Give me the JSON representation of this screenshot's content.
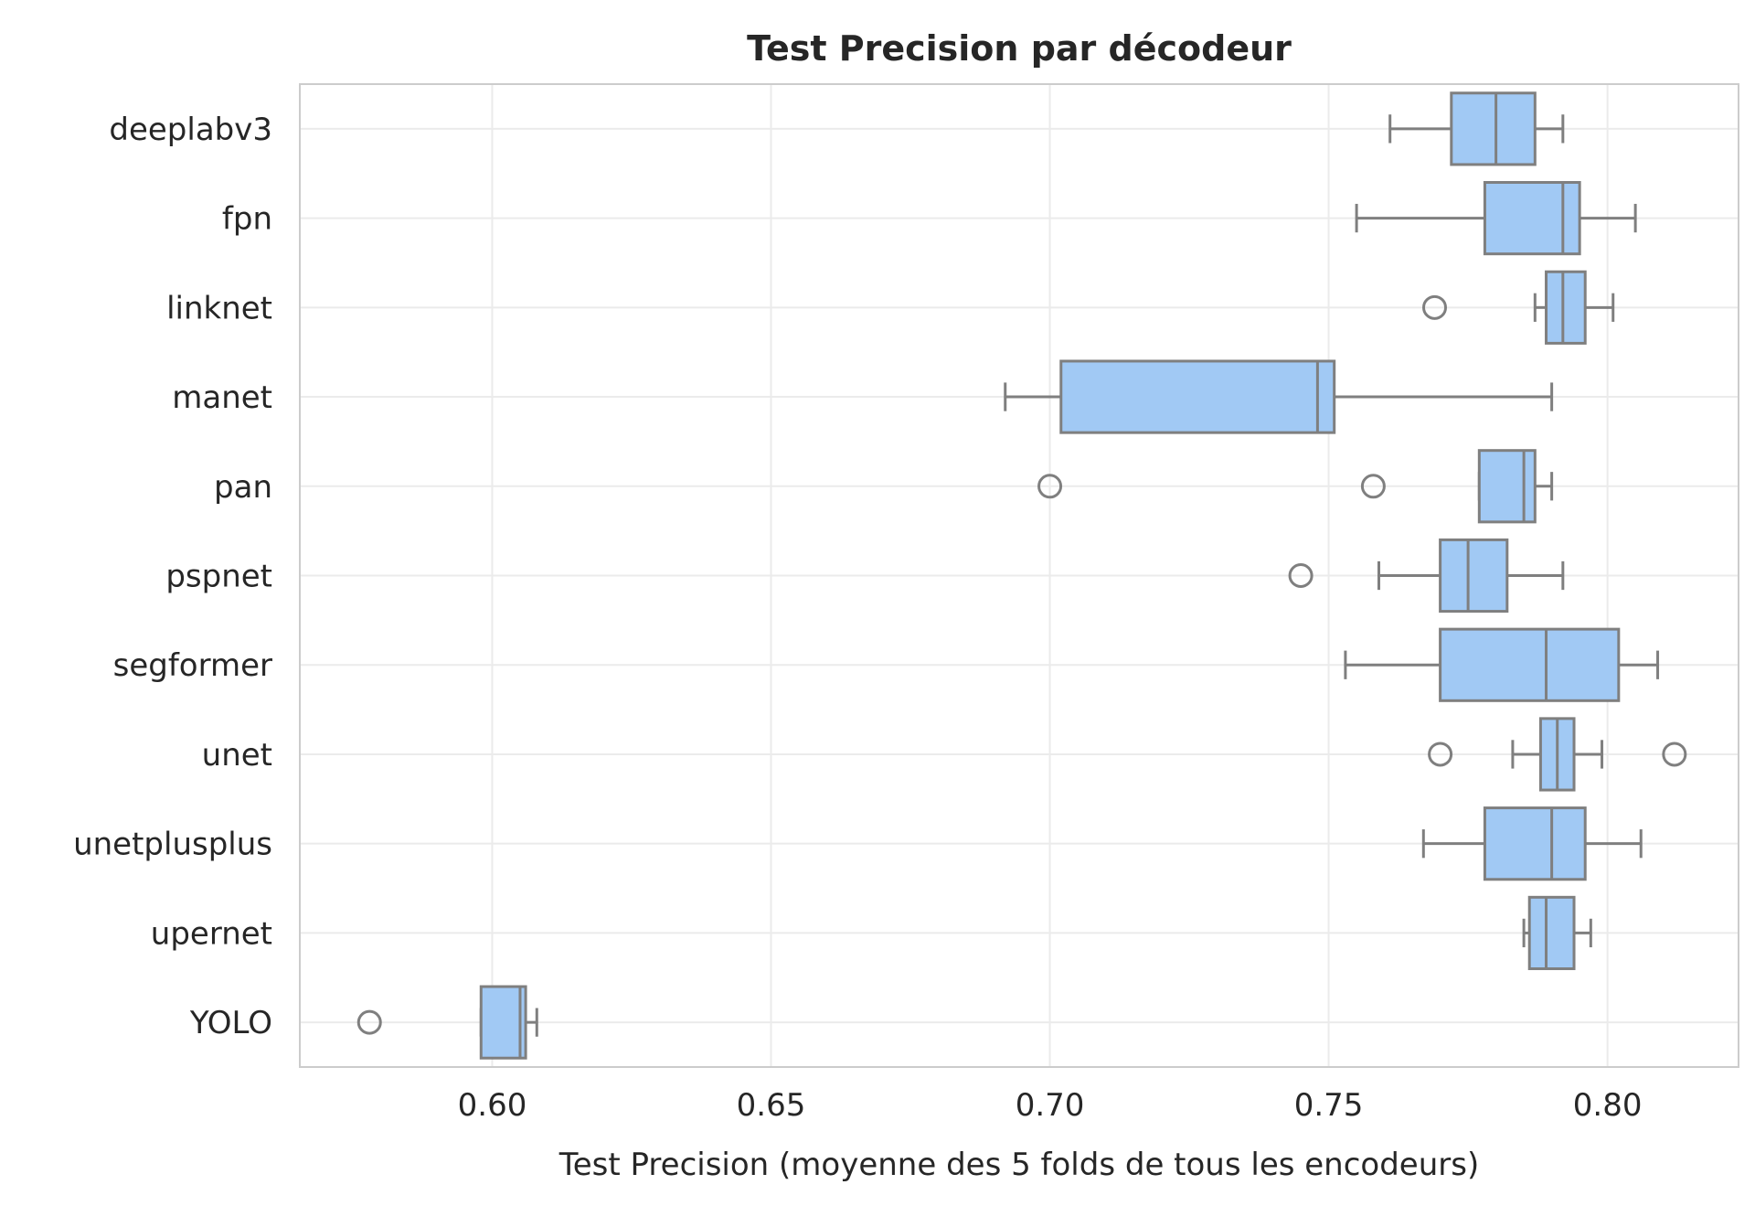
{
  "chart_data": {
    "type": "boxplot",
    "orientation": "horizontal",
    "title": "Test Precision par décodeur",
    "xlabel": "Test Precision (moyenne des 5 folds de tous les encodeurs)",
    "ylabel": "",
    "xlim": [
      0.5655,
      0.8235
    ],
    "xticks": [
      "0.60",
      "0.65",
      "0.70",
      "0.75",
      "0.80"
    ],
    "xtick_values": [
      0.6,
      0.65,
      0.7,
      0.75,
      0.8
    ],
    "grid": true,
    "colors": {
      "box_fill": "#a1c9f4",
      "box_edge": "#7f7f7f",
      "grid": "#ebebeb",
      "frame": "#cccccc",
      "text": "#262626"
    },
    "categories": [
      "deeplabv3",
      "fpn",
      "linknet",
      "manet",
      "pan",
      "pspnet",
      "segformer",
      "unet",
      "unetplusplus",
      "upernet",
      "YOLO"
    ],
    "boxes": [
      {
        "name": "deeplabv3",
        "whislo": 0.761,
        "q1": 0.772,
        "med": 0.78,
        "q3": 0.787,
        "whishi": 0.792,
        "fliers": []
      },
      {
        "name": "fpn",
        "whislo": 0.755,
        "q1": 0.778,
        "med": 0.792,
        "q3": 0.795,
        "whishi": 0.805,
        "fliers": []
      },
      {
        "name": "linknet",
        "whislo": 0.787,
        "q1": 0.789,
        "med": 0.792,
        "q3": 0.796,
        "whishi": 0.801,
        "fliers": [
          0.769
        ]
      },
      {
        "name": "manet",
        "whislo": 0.692,
        "q1": 0.702,
        "med": 0.748,
        "q3": 0.751,
        "whishi": 0.79,
        "fliers": []
      },
      {
        "name": "pan",
        "whislo": 0.777,
        "q1": 0.777,
        "med": 0.785,
        "q3": 0.787,
        "whishi": 0.79,
        "fliers": [
          0.7,
          0.758
        ]
      },
      {
        "name": "pspnet",
        "whislo": 0.759,
        "q1": 0.77,
        "med": 0.775,
        "q3": 0.782,
        "whishi": 0.792,
        "fliers": [
          0.745
        ]
      },
      {
        "name": "segformer",
        "whislo": 0.753,
        "q1": 0.77,
        "med": 0.789,
        "q3": 0.802,
        "whishi": 0.809,
        "fliers": []
      },
      {
        "name": "unet",
        "whislo": 0.783,
        "q1": 0.788,
        "med": 0.791,
        "q3": 0.794,
        "whishi": 0.799,
        "fliers": [
          0.77,
          0.812
        ]
      },
      {
        "name": "unetplusplus",
        "whislo": 0.767,
        "q1": 0.778,
        "med": 0.79,
        "q3": 0.796,
        "whishi": 0.806,
        "fliers": []
      },
      {
        "name": "upernet",
        "whislo": 0.785,
        "q1": 0.786,
        "med": 0.789,
        "q3": 0.794,
        "whishi": 0.797,
        "fliers": []
      },
      {
        "name": "YOLO",
        "whislo": 0.598,
        "q1": 0.598,
        "med": 0.605,
        "q3": 0.606,
        "whishi": 0.608,
        "fliers": [
          0.578
        ]
      }
    ]
  }
}
